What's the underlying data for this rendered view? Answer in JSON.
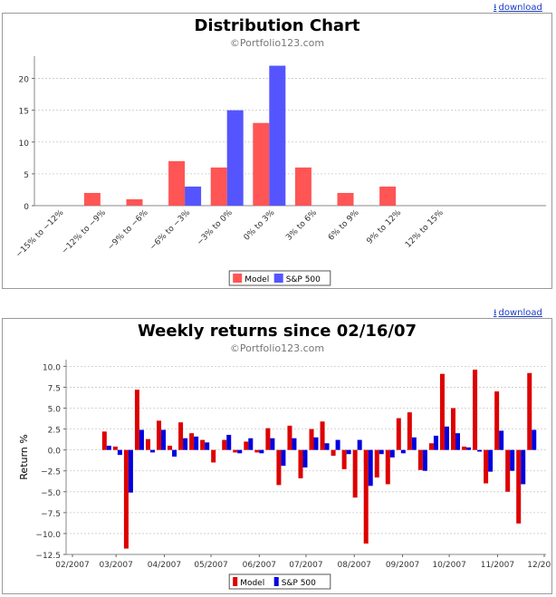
{
  "download_label": "download",
  "chart_data": [
    {
      "type": "bar",
      "title": "Distribution Chart",
      "subtitle": "©Portfolio123.com",
      "xlabel": "",
      "ylabel": "",
      "categories": [
        "-15% to -12%",
        "-12% to -9%",
        "-9% to -6%",
        "-6% to -3%",
        "-3% to 0%",
        "0% to 3%",
        "3% to 6%",
        "6% to 9%",
        "9% to 12%",
        "12% to 15%"
      ],
      "series": [
        {
          "name": "Model",
          "color": "#ff5555",
          "values": [
            0,
            2,
            1,
            7,
            6,
            13,
            6,
            2,
            3,
            0
          ]
        },
        {
          "name": "S&P 500",
          "color": "#5555ff",
          "values": [
            0,
            0,
            0,
            3,
            15,
            22,
            0,
            0,
            0,
            0
          ]
        }
      ],
      "ylim": [
        0,
        23.5
      ],
      "yticks": [
        0,
        5,
        10,
        15,
        20
      ],
      "grid": true,
      "legend": "bottom-center"
    },
    {
      "type": "bar",
      "title": "Weekly returns since 02/16/07",
      "subtitle": "©Portfolio123.com",
      "xlabel": "",
      "ylabel": "Return %",
      "x": [
        "2007-02-23",
        "2007-03-02",
        "2007-03-09",
        "2007-03-16",
        "2007-03-23",
        "2007-03-30",
        "2007-04-06",
        "2007-04-13",
        "2007-04-20",
        "2007-04-27",
        "2007-05-04",
        "2007-05-11",
        "2007-05-18",
        "2007-05-25",
        "2007-06-01",
        "2007-06-08",
        "2007-06-15",
        "2007-06-22",
        "2007-06-29",
        "2007-07-06",
        "2007-07-13",
        "2007-07-20",
        "2007-07-27",
        "2007-08-03",
        "2007-08-10",
        "2007-08-17",
        "2007-08-24",
        "2007-08-31",
        "2007-09-07",
        "2007-09-14",
        "2007-09-21",
        "2007-09-28",
        "2007-10-05",
        "2007-10-12",
        "2007-10-19",
        "2007-10-26",
        "2007-11-02",
        "2007-11-09",
        "2007-11-16",
        "2007-11-23"
      ],
      "series": [
        {
          "name": "Model",
          "color": "#dd0000",
          "values": [
            2.2,
            0.4,
            -11.8,
            7.2,
            1.3,
            3.5,
            0.5,
            3.3,
            2.0,
            1.2,
            -1.5,
            1.2,
            -0.3,
            1.0,
            -0.3,
            2.6,
            -4.2,
            2.9,
            -3.4,
            2.5,
            3.4,
            -0.7,
            -2.3,
            -5.7,
            -11.2,
            -3.3,
            -4.1,
            3.8,
            4.5,
            -2.4,
            0.8,
            9.1,
            5.0,
            0.4,
            9.6,
            -4.0,
            7.0,
            -5.0,
            -8.8,
            9.2
          ]
        },
        {
          "name": "S&P 500",
          "color": "#0000dd",
          "values": [
            0.5,
            -0.6,
            -5.1,
            2.4,
            -0.3,
            2.4,
            -0.8,
            1.4,
            1.6,
            0.9,
            0.0,
            1.8,
            -0.4,
            1.4,
            -0.4,
            1.4,
            -1.9,
            1.4,
            -2.1,
            1.5,
            0.8,
            1.2,
            -0.5,
            1.2,
            -4.3,
            -0.5,
            -0.9,
            -0.4,
            1.5,
            -2.5,
            1.7,
            2.8,
            2.0,
            0.3,
            -0.2,
            -2.6,
            2.3,
            -2.5,
            -4.1,
            2.4
          ]
        }
      ],
      "xticks": [
        "02/2007",
        "03/2007",
        "04/2007",
        "05/2007",
        "06/2007",
        "07/2007",
        "08/2007",
        "09/2007",
        "10/2007",
        "11/2007",
        "12/2007"
      ],
      "xlim": [
        "2007-02-01",
        "2007-12-01"
      ],
      "ylim": [
        -12.5,
        10.8
      ],
      "yticks": [
        -12.5,
        -10.0,
        -7.5,
        -5.0,
        -2.5,
        0.0,
        2.5,
        5.0,
        7.5,
        10.0
      ],
      "grid": true,
      "legend": "bottom-center"
    }
  ]
}
